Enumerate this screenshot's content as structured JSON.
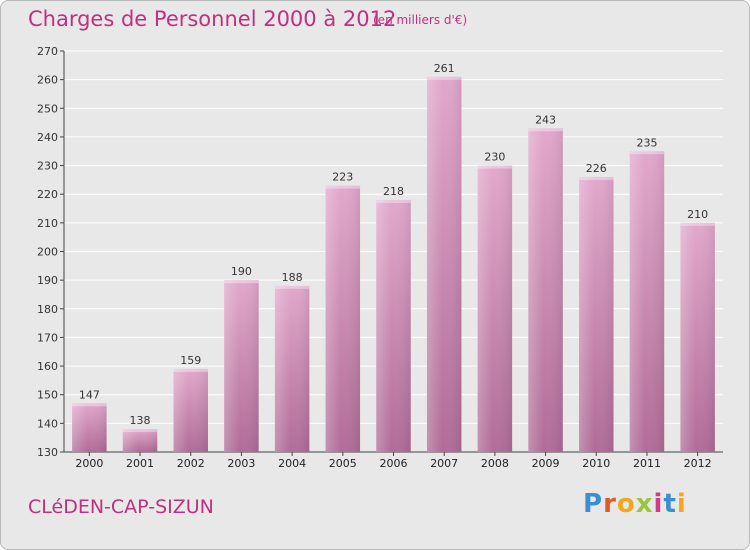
{
  "header": {
    "title": "Charges de Personnel 2000 à 2012",
    "subtitle": "(en milliers d'€)"
  },
  "footer": {
    "commune": "CLéDEN-CAP-SIZUN",
    "logo_text": "Proxiti",
    "logo_letters": [
      {
        "char": "P",
        "color": "#3a8fd0"
      },
      {
        "char": "r",
        "color": "#e05a28"
      },
      {
        "char": "o",
        "color": "#f2a81d"
      },
      {
        "char": "x",
        "color": "#9bc53d"
      },
      {
        "char": "i",
        "color": "#d13c86"
      },
      {
        "char": "t",
        "color": "#3a8fd0"
      },
      {
        "char": "i",
        "color": "#f2a81d"
      }
    ]
  },
  "colors": {
    "accent": "#c0307f",
    "bar_top": "#e2a8cc",
    "bar_bottom": "#b06c97",
    "plot_bg": "#e8e8e8",
    "grid": "#ffffff"
  },
  "chart_data": {
    "type": "bar",
    "title": "Charges de Personnel 2000 à 2012",
    "subtitle": "(en milliers d'€)",
    "xlabel": "",
    "ylabel": "",
    "categories": [
      "2000",
      "2001",
      "2002",
      "2003",
      "2004",
      "2005",
      "2006",
      "2007",
      "2008",
      "2009",
      "2010",
      "2011",
      "2012"
    ],
    "values": [
      147,
      138,
      159,
      190,
      188,
      223,
      218,
      261,
      230,
      243,
      226,
      235,
      210
    ],
    "ylim": [
      130,
      270
    ],
    "yticks": [
      130,
      140,
      150,
      160,
      170,
      180,
      190,
      200,
      210,
      220,
      230,
      240,
      250,
      260,
      270
    ],
    "grid": true,
    "data_labels": true,
    "legend": "none"
  }
}
